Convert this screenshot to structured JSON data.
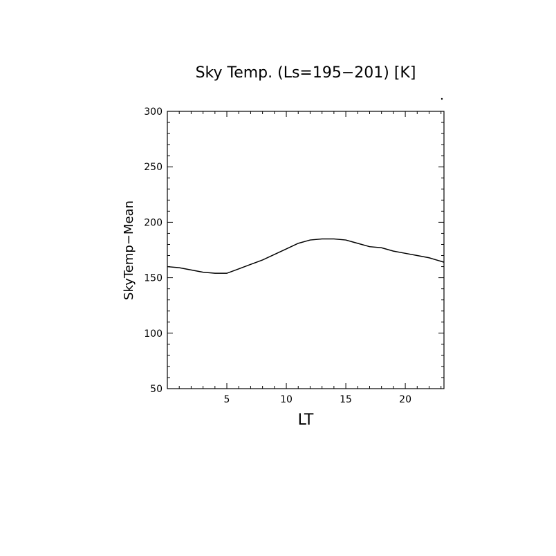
{
  "chart_data": {
    "type": "line",
    "title": "Sky Temp. (Ls=195−201) [K]",
    "xlabel": "LT",
    "ylabel": "SkyTemp−Mean",
    "xlim": [
      0,
      23.25
    ],
    "ylim": [
      50,
      300
    ],
    "x_ticks": [
      5,
      10,
      15,
      20
    ],
    "y_ticks": [
      50,
      100,
      150,
      200,
      250,
      300
    ],
    "x_tick_labels": [
      "5",
      "10",
      "15",
      "20"
    ],
    "y_tick_labels": [
      "50",
      "100",
      "150",
      "200",
      "250",
      "300"
    ],
    "grid": false,
    "series": [
      {
        "x": [
          0,
          1,
          2,
          3,
          4,
          5,
          6,
          7,
          8,
          9,
          10,
          11,
          12,
          13,
          14,
          15,
          16,
          17,
          18,
          19,
          20,
          21,
          22,
          23.25
        ],
        "y": [
          160,
          159,
          157,
          155,
          154,
          154,
          158,
          162,
          166,
          171,
          176,
          181,
          184,
          185,
          185,
          184,
          181,
          178,
          177,
          174,
          172,
          170,
          168,
          164
        ]
      }
    ]
  }
}
